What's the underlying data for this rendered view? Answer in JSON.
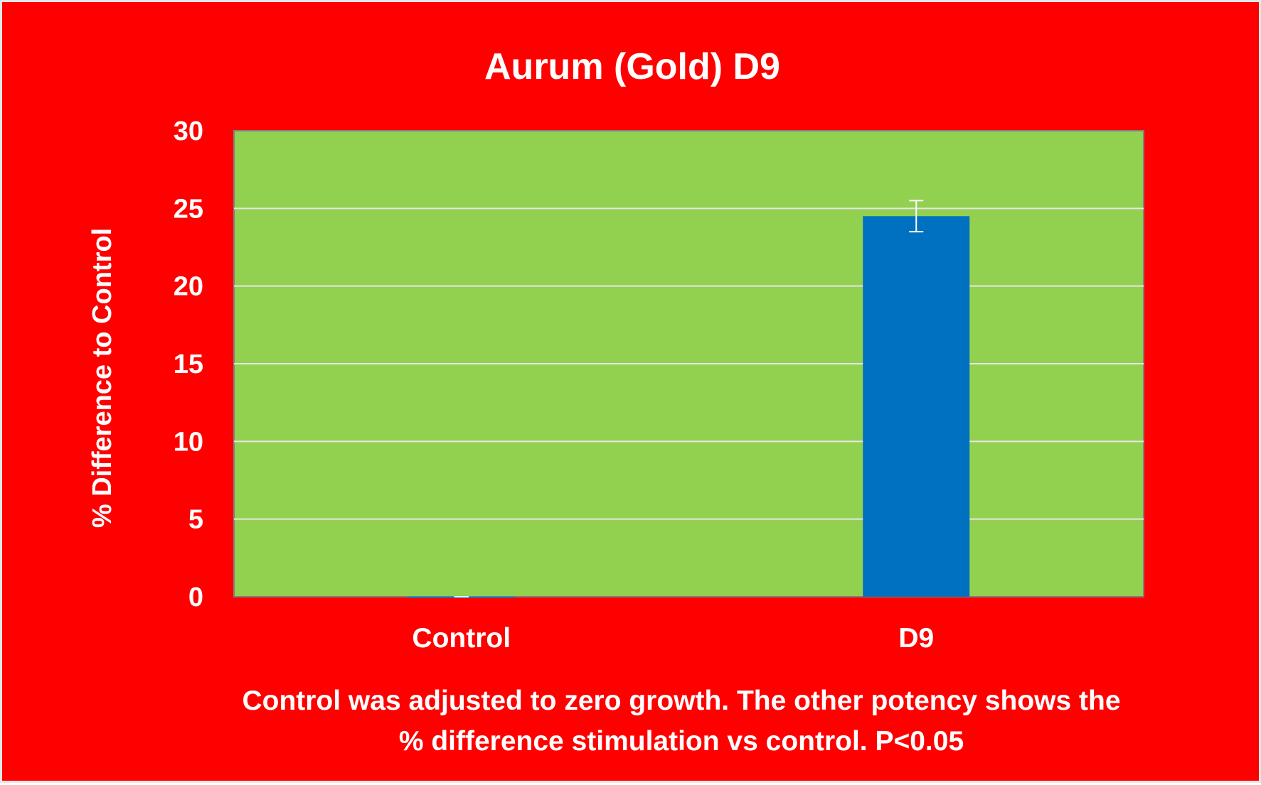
{
  "chart_data": {
    "type": "bar",
    "title": "Aurum (Gold) D9",
    "xlabel": "",
    "ylabel": "% Difference to Control",
    "categories": [
      "Control",
      "D9"
    ],
    "values": [
      0,
      24.5
    ],
    "error_bars": [
      0,
      1
    ],
    "ylim": [
      0,
      30
    ],
    "yticks": [
      0,
      5,
      10,
      15,
      20,
      25,
      30
    ],
    "grid": true,
    "legend": "none",
    "colors": {
      "background": "#ff0000",
      "plot_area": "#92d050",
      "bar": "#0070c0",
      "gridline": "#e6e6e6",
      "text": "#ffffff"
    }
  },
  "footnote": {
    "line1": "Control was adjusted to zero growth. The other potency shows the",
    "line2": "% difference stimulation vs control. P<0.05"
  }
}
